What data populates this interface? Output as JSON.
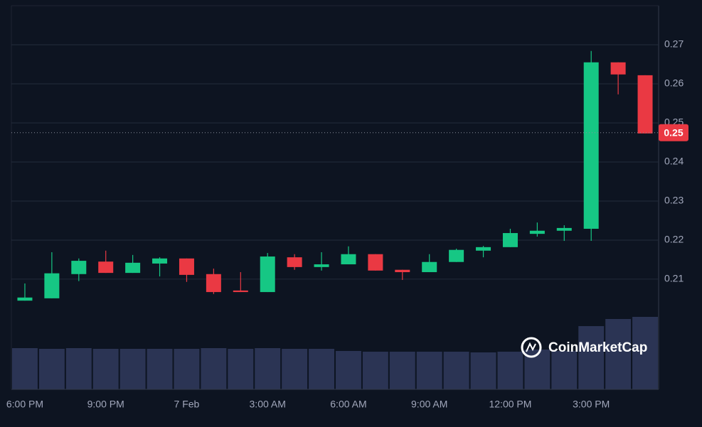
{
  "chart_data": {
    "type": "candlestick",
    "categories": [
      "6:00 PM",
      null,
      null,
      "9:00 PM",
      null,
      null,
      "7 Feb",
      null,
      null,
      "3:00 AM",
      null,
      null,
      "6:00 AM",
      null,
      null,
      "9:00 AM",
      null,
      null,
      "12:00 PM",
      null,
      null,
      "3:00 PM",
      null,
      null
    ],
    "open": [
      0.2045,
      0.2051,
      0.2113,
      0.2145,
      0.2116,
      0.214,
      0.2153,
      0.2113,
      0.2071,
      0.2067,
      0.2156,
      0.2131,
      0.2138,
      0.2164,
      0.2124,
      0.2118,
      0.2144,
      0.2173,
      0.2182,
      0.2216,
      0.2224,
      0.2229,
      0.2655,
      0.2622
    ],
    "high": [
      0.2089,
      0.2169,
      0.2153,
      0.2173,
      0.2162,
      0.2156,
      0.2153,
      0.2127,
      0.2118,
      0.2167,
      0.2164,
      0.2169,
      0.2184,
      0.2164,
      0.2124,
      0.2164,
      0.2178,
      0.2185,
      0.2229,
      0.2245,
      0.2238,
      0.2684,
      0.2655,
      0.2622
    ],
    "low": [
      0.2045,
      0.2051,
      0.2095,
      0.2116,
      0.2116,
      0.2107,
      0.2093,
      0.2062,
      0.2067,
      0.2067,
      0.2124,
      0.2122,
      0.2138,
      0.2122,
      0.2098,
      0.2118,
      0.2144,
      0.2156,
      0.2182,
      0.2209,
      0.2198,
      0.2198,
      0.2573,
      0.2473
    ],
    "close": [
      0.2053,
      0.2115,
      0.2147,
      0.2116,
      0.2142,
      0.2153,
      0.2111,
      0.2067,
      0.2067,
      0.2158,
      0.2131,
      0.2138,
      0.2164,
      0.2122,
      0.2118,
      0.2144,
      0.2175,
      0.2182,
      0.2218,
      0.2224,
      0.2231,
      0.2655,
      0.2624,
      0.2473
    ],
    "volume": [
      58,
      57,
      58,
      57,
      57,
      57,
      57,
      58,
      57,
      58,
      57,
      57,
      54,
      53,
      53,
      53,
      53,
      52,
      53,
      56,
      54,
      89,
      99,
      102
    ],
    "up_color": "#16c784",
    "down_color": "#ea3943",
    "volume_color": "#2b3454",
    "ylim": [
      0.1818,
      0.28
    ],
    "yticks": [
      0.21,
      0.22,
      0.23,
      0.24,
      0.25,
      0.26,
      0.27
    ],
    "current_price": {
      "value": 0.2475,
      "label": "0.25"
    },
    "grid": true,
    "watermark": "CoinMarketCap"
  }
}
